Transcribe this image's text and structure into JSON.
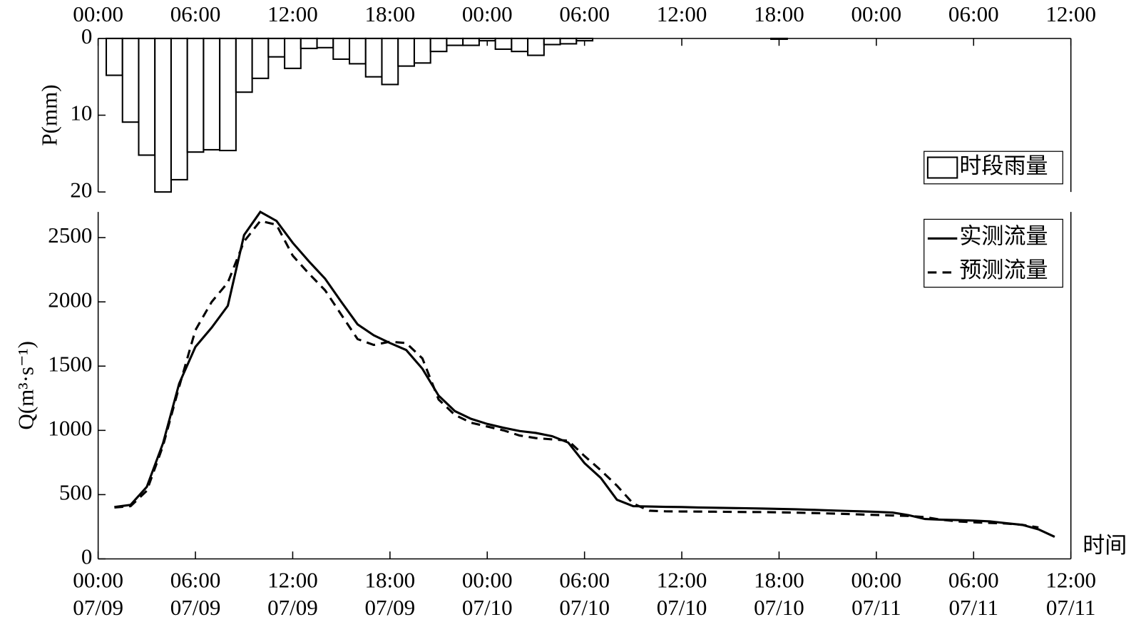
{
  "chart_data": [
    {
      "type": "bar",
      "ylabel": "P(mm)",
      "legend": "时段雨量",
      "color": "#ffffff",
      "edgecolor": "#000000",
      "xlim": [
        0,
        60
      ],
      "xticks": [
        {
          "value": 0,
          "label": "00:00"
        },
        {
          "value": 6,
          "label": "06:00"
        },
        {
          "value": 12,
          "label": "12:00"
        },
        {
          "value": 18,
          "label": "18:00"
        },
        {
          "value": 24,
          "label": "00:00"
        },
        {
          "value": 30,
          "label": "06:00"
        },
        {
          "value": 36,
          "label": "12:00"
        },
        {
          "value": 42,
          "label": "18:00"
        },
        {
          "value": 48,
          "label": "00:00"
        },
        {
          "value": 54,
          "label": "06:00"
        },
        {
          "value": 60,
          "label": "12:00"
        }
      ],
      "ylim": [
        0,
        20
      ],
      "y_reversed": true,
      "yticks": [
        0,
        10,
        20
      ],
      "x": [
        1,
        2,
        3,
        4,
        5,
        6,
        7,
        8,
        9,
        10,
        11,
        12,
        13,
        14,
        15,
        16,
        17,
        18,
        19,
        20,
        21,
        22,
        23,
        24,
        25,
        26,
        27,
        28,
        29,
        30,
        31,
        32,
        33,
        34,
        35,
        36,
        37,
        38,
        39,
        40,
        41,
        42,
        43,
        44,
        45,
        46,
        47,
        48,
        49,
        50,
        51,
        52,
        53,
        54,
        55,
        56,
        57,
        58
      ],
      "values": [
        4.8,
        10.9,
        15.2,
        20,
        18.4,
        14.8,
        14.5,
        14.6,
        7.0,
        5.2,
        2.4,
        3.9,
        1.3,
        1.2,
        2.7,
        3.3,
        5.0,
        6.0,
        3.6,
        3.2,
        1.7,
        0.9,
        0.9,
        0.3,
        1.4,
        1.7,
        2.2,
        0.8,
        0.7,
        0.3,
        0,
        0,
        0,
        0,
        0,
        0,
        0,
        0,
        0,
        0,
        0,
        0.1,
        0,
        0,
        0,
        0,
        0,
        0,
        0,
        0,
        0,
        0,
        0,
        0,
        0,
        0,
        0,
        0
      ]
    },
    {
      "type": "line",
      "xlabel": "时间",
      "ylabel": "Q(m³·s⁻¹)",
      "xlim": [
        0,
        60
      ],
      "xticks": [
        {
          "value": 0,
          "label": "00:00",
          "date": "07/09"
        },
        {
          "value": 6,
          "label": "06:00",
          "date": "07/09"
        },
        {
          "value": 12,
          "label": "12:00",
          "date": "07/09"
        },
        {
          "value": 18,
          "label": "18:00",
          "date": "07/09"
        },
        {
          "value": 24,
          "label": "00:00",
          "date": "07/10"
        },
        {
          "value": 30,
          "label": "06:00",
          "date": "07/10"
        },
        {
          "value": 36,
          "label": "12:00",
          "date": "07/10"
        },
        {
          "value": 42,
          "label": "18:00",
          "date": "07/10"
        },
        {
          "value": 48,
          "label": "00:00",
          "date": "07/11"
        },
        {
          "value": 54,
          "label": "06:00",
          "date": "07/11"
        },
        {
          "value": 60,
          "label": "12:00",
          "date": "07/11"
        }
      ],
      "ylim": [
        0,
        2700
      ],
      "yticks": [
        0,
        500,
        1000,
        1500,
        2000,
        2500
      ],
      "x": [
        1,
        2,
        3,
        4,
        5,
        6,
        7,
        8,
        9,
        10,
        11,
        12,
        13,
        14,
        15,
        16,
        17,
        18,
        19,
        20,
        21,
        22,
        23,
        24,
        25,
        26,
        27,
        28,
        29,
        30,
        31,
        32,
        33,
        34,
        35,
        36,
        37,
        38,
        39,
        40,
        41,
        42,
        43,
        44,
        45,
        46,
        47,
        48,
        49,
        50,
        51,
        52,
        53,
        54,
        55,
        56,
        57,
        58,
        59
      ],
      "series": [
        {
          "name": "实测流量",
          "color": "#000000",
          "dash": "solid",
          "values": [
            403,
            420,
            560,
            900,
            1365,
            1650,
            1800,
            1970,
            2520,
            2700,
            2630,
            2460,
            2315,
            2180,
            2000,
            1825,
            1740,
            1680,
            1625,
            1480,
            1270,
            1150,
            1090,
            1050,
            1020,
            995,
            980,
            955,
            905,
            745,
            630,
            460,
            410,
            408,
            405,
            403,
            400,
            398,
            396,
            394,
            392,
            389,
            386,
            382,
            378,
            374,
            370,
            366,
            360,
            340,
            310,
            305,
            302,
            298,
            292,
            278,
            265,
            230,
            172
          ]
        },
        {
          "name": "预测流量",
          "color": "#000000",
          "dash": "dashed",
          "values": [
            400,
            410,
            530,
            880,
            1340,
            1780,
            2000,
            2150,
            2470,
            2630,
            2600,
            2360,
            2220,
            2090,
            1900,
            1710,
            1665,
            1690,
            1680,
            1560,
            1240,
            1120,
            1060,
            1030,
            1000,
            960,
            940,
            930,
            920,
            800,
            690,
            570,
            430,
            375,
            370,
            369,
            368,
            367,
            366,
            365,
            364,
            362,
            360,
            357,
            354,
            350,
            346,
            342,
            338,
            334,
            325,
            305,
            292,
            285,
            280,
            275,
            265,
            245,
            null
          ]
        }
      ]
    }
  ]
}
